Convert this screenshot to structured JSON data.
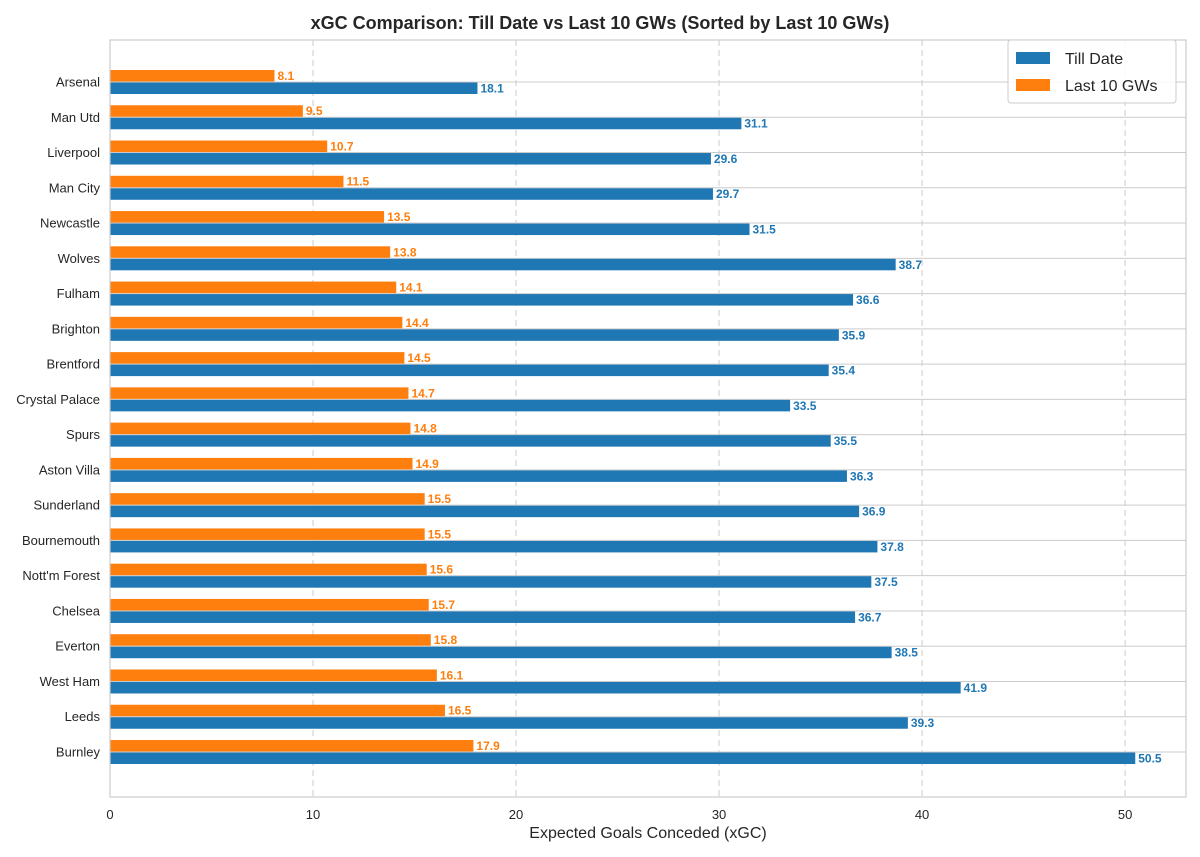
{
  "colors": {
    "series_till": "#1f77b4",
    "series_last": "#ff7f0e",
    "grid": "#cccccc",
    "axes_edge": "#cccccc"
  },
  "chart_data": {
    "type": "bar",
    "orientation": "horizontal",
    "title": "xGC Comparison: Till Date vs Last 10 GWs (Sorted by Last 10 GWs)",
    "xlabel": "Expected Goals Conceded (xGC)",
    "ylabel": "",
    "xlim": [
      0,
      53
    ],
    "xticks": [
      0,
      10,
      20,
      30,
      40,
      50
    ],
    "grid": true,
    "legend_position": "top-right",
    "categories": [
      "Arsenal",
      "Man Utd",
      "Liverpool",
      "Man City",
      "Newcastle",
      "Wolves",
      "Fulham",
      "Brighton",
      "Brentford",
      "Crystal Palace",
      "Spurs",
      "Aston Villa",
      "Sunderland",
      "Bournemouth",
      "Nott'm Forest",
      "Chelsea",
      "Everton",
      "West Ham",
      "Leeds",
      "Burnley"
    ],
    "series": [
      {
        "name": "Till Date",
        "values": [
          18.1,
          31.1,
          29.6,
          29.7,
          31.5,
          38.7,
          36.6,
          35.9,
          35.4,
          33.5,
          35.5,
          36.3,
          36.9,
          37.8,
          37.5,
          36.7,
          38.5,
          41.9,
          39.3,
          50.5
        ],
        "labels": [
          "18.1",
          "31.1",
          "29.6",
          "29.7",
          "31.5",
          "38.7",
          "36.6",
          "35.9",
          "35.4",
          "33.5",
          "35.5",
          "36.3",
          "36.9",
          "37.8",
          "37.5",
          "36.7",
          "38.5",
          "41.9",
          "39.3",
          "50.5"
        ]
      },
      {
        "name": "Last 10 GWs",
        "values": [
          8.1,
          9.5,
          10.7,
          11.5,
          13.5,
          13.8,
          14.1,
          14.4,
          14.5,
          14.7,
          14.8,
          14.9,
          15.5,
          15.5,
          15.6,
          15.7,
          15.8,
          16.1,
          16.5,
          17.9
        ],
        "labels": [
          "8.1",
          "9.5",
          "10.7",
          "11.5",
          "13.5",
          "13.8",
          "14.1",
          "14.4",
          "14.5",
          "14.7",
          "14.8",
          "14.9",
          "15.5",
          "15.5",
          "15.6",
          "15.7",
          "15.8",
          "16.1",
          "16.5",
          "17.9"
        ]
      }
    ]
  }
}
